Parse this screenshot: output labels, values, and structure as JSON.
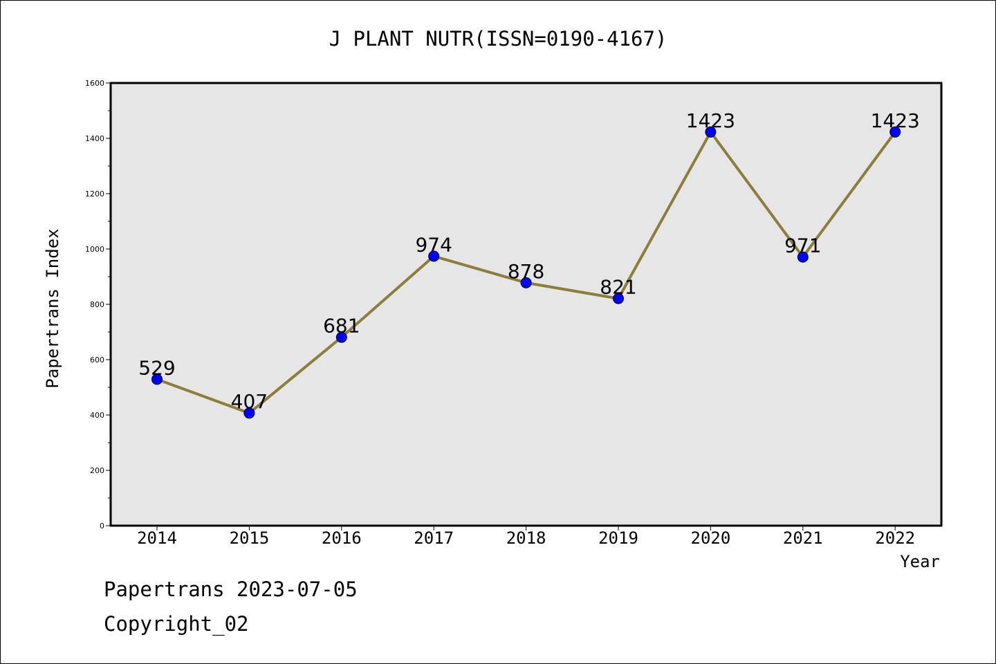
{
  "chart_data": {
    "type": "line",
    "title": "J PLANT NUTR(ISSN=0190-4167)",
    "xlabel": "Year",
    "ylabel": "Papertrans Index",
    "categories": [
      "2014",
      "2015",
      "2016",
      "2017",
      "2018",
      "2019",
      "2020",
      "2021",
      "2022"
    ],
    "series": [
      {
        "values": [
          529,
          407,
          681,
          974,
          878,
          821,
          1423,
          971,
          1423
        ],
        "data_labels": [
          "529",
          "407",
          "681",
          "974",
          "878",
          "821",
          "1423",
          "971",
          "1423"
        ],
        "line_color": "#8b7d3a",
        "marker_color": "#0000ff"
      }
    ],
    "ylim": [
      0,
      1600
    ],
    "yticks": [
      0,
      200,
      400,
      600,
      800,
      1000,
      1200,
      1400,
      1600
    ],
    "ytick_labels": [
      "0",
      "200",
      "400",
      "600",
      "800",
      "1000",
      "1200",
      "1400",
      "1600"
    ],
    "grid": false,
    "legend": "none",
    "plot_background": "#e6e6e6"
  },
  "footer": {
    "date_line": "Papertrans 2023-07-05",
    "copyright_line": "Copyright_02"
  }
}
